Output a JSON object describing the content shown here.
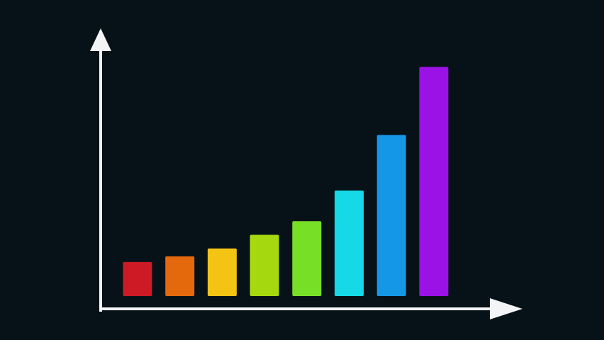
{
  "chart_data": {
    "type": "bar",
    "title": "",
    "xlabel": "",
    "ylabel": "",
    "categories": [
      "",
      "",
      "",
      "",
      "",
      "",
      "",
      ""
    ],
    "values": [
      15,
      17.5,
      21,
      27,
      33,
      46.5,
      71,
      101
    ],
    "ylim": [
      0,
      118
    ],
    "grid": false,
    "legend": "none",
    "bar_colors": [
      "#cc1b25",
      "#e4680c",
      "#f3c414",
      "#a5d80f",
      "#78df27",
      "#16d9e8",
      "#1497e5",
      "#9a12e6"
    ],
    "axis_color": "#f2f4f5",
    "background": "#071218"
  }
}
